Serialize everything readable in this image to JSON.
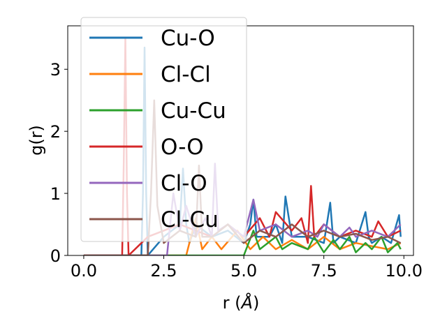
{
  "chart_data": {
    "type": "line",
    "title": "",
    "xlabel": "r (",
    "xlabel_unit": "Å",
    "xlabel_close": ")",
    "ylabel": "g(r)",
    "xlim": [
      -0.5,
      10.3
    ],
    "ylim": [
      0,
      3.7
    ],
    "xticks": [
      0.0,
      2.5,
      5.0,
      7.5,
      10.0
    ],
    "xtick_labels": [
      "0.0",
      "2.5",
      "5.0",
      "7.5",
      "10.0"
    ],
    "yticks": [
      0,
      1,
      2,
      3
    ],
    "ytick_labels": [
      "0",
      "1",
      "2",
      "3"
    ],
    "grid": false,
    "legend_position": "upper-left",
    "series": [
      {
        "name": "Cu-O",
        "color": "#1f77b4",
        "x": [
          0.0,
          1.8,
          1.85,
          1.9,
          1.95,
          2.0,
          2.5,
          3.0,
          3.1,
          3.2,
          3.3,
          3.5,
          4.0,
          4.5,
          5.0,
          5.2,
          5.3,
          5.4,
          5.8,
          6.0,
          6.2,
          6.3,
          6.5,
          7.0,
          7.5,
          7.7,
          7.8,
          8.0,
          8.5,
          8.8,
          8.9,
          9.0,
          9.3,
          9.6,
          9.85,
          9.9
        ],
        "y": [
          0,
          0,
          1.0,
          3.35,
          1.0,
          0,
          0.3,
          0.5,
          1.4,
          0.5,
          0.2,
          0.5,
          0.3,
          0.4,
          0.2,
          0.5,
          0.9,
          0.3,
          0.3,
          0.5,
          0.2,
          0.95,
          0.3,
          0.3,
          0.2,
          0.85,
          0.2,
          0.3,
          0.2,
          0.7,
          0.3,
          0.2,
          0.3,
          0.2,
          0.65,
          0.3
        ]
      },
      {
        "name": "Cl-Cl",
        "color": "#ff7f0e",
        "x": [
          0.0,
          3.2,
          3.5,
          3.7,
          4.0,
          4.3,
          4.8,
          5.2,
          5.6,
          6.0,
          6.5,
          7.0,
          7.5,
          8.0,
          8.5,
          9.0,
          9.5,
          9.9
        ],
        "y": [
          0,
          0,
          0.6,
          0.1,
          0.3,
          0.1,
          0.4,
          0.1,
          0.3,
          0.1,
          0.25,
          0.1,
          0.3,
          0.1,
          0.2,
          0.15,
          0.1,
          0.2
        ]
      },
      {
        "name": "Cu-Cu",
        "color": "#2ca02c",
        "x": [
          0.0,
          5.0,
          5.3,
          5.5,
          6.0,
          6.2,
          6.5,
          7.0,
          7.2,
          7.5,
          7.8,
          8.0,
          8.3,
          8.5,
          8.8,
          9.0,
          9.3,
          9.5,
          9.8,
          9.9
        ],
        "y": [
          0,
          0,
          0.4,
          0.1,
          0.3,
          0.1,
          0.2,
          0.1,
          0.3,
          0.05,
          0.25,
          0.1,
          0.3,
          0.05,
          0.2,
          0.1,
          0.3,
          0.05,
          0.2,
          0.1
        ]
      },
      {
        "name": "O-O",
        "color": "#d62728",
        "x": [
          0.0,
          1.2,
          1.25,
          1.3,
          1.35,
          1.4,
          2.0,
          2.5,
          3.0,
          3.5,
          4.0,
          4.5,
          5.0,
          5.5,
          5.8,
          6.0,
          6.5,
          6.8,
          7.0,
          7.1,
          7.2,
          7.5,
          8.0,
          8.5,
          9.0,
          9.2,
          9.5,
          9.9
        ],
        "y": [
          0,
          0,
          1.5,
          3.5,
          1.0,
          0,
          0.3,
          0.4,
          0.5,
          0.4,
          0.3,
          0.5,
          0.3,
          0.6,
          0.3,
          0.7,
          0.4,
          0.6,
          0.2,
          1.12,
          0.3,
          0.5,
          0.3,
          0.4,
          0.3,
          0.55,
          0.3,
          0.4
        ]
      },
      {
        "name": "Cl-O",
        "color": "#9467bd",
        "x": [
          0.0,
          2.6,
          2.8,
          3.0,
          3.2,
          3.5,
          3.8,
          4.0,
          4.1,
          4.2,
          4.5,
          5.0,
          5.3,
          5.5,
          6.0,
          6.5,
          7.0,
          7.3,
          7.5,
          8.0,
          8.3,
          8.5,
          9.0,
          9.5,
          9.9
        ],
        "y": [
          0,
          0,
          1.0,
          0.4,
          0.8,
          0.3,
          0.6,
          0.3,
          1.48,
          0.4,
          0.5,
          0.3,
          0.9,
          0.4,
          0.5,
          0.3,
          0.4,
          0.3,
          0.5,
          0.3,
          0.45,
          0.3,
          0.4,
          0.3,
          0.5
        ]
      },
      {
        "name": "Cl-Cu",
        "color": "#8c564b",
        "x": [
          0.0,
          2.0,
          2.1,
          2.2,
          2.3,
          2.5,
          3.0,
          3.5,
          3.6,
          3.7,
          4.0,
          4.5,
          5.0,
          5.5,
          6.0,
          6.5,
          7.0,
          7.5,
          8.0,
          8.5,
          9.0,
          9.5,
          9.9
        ],
        "y": [
          0,
          0,
          1.0,
          2.5,
          0.8,
          0.2,
          0.4,
          0.3,
          1.45,
          0.3,
          0.3,
          0.5,
          0.2,
          0.4,
          0.3,
          0.5,
          0.3,
          0.4,
          0.3,
          0.35,
          0.25,
          0.3,
          0.2
        ]
      }
    ]
  }
}
